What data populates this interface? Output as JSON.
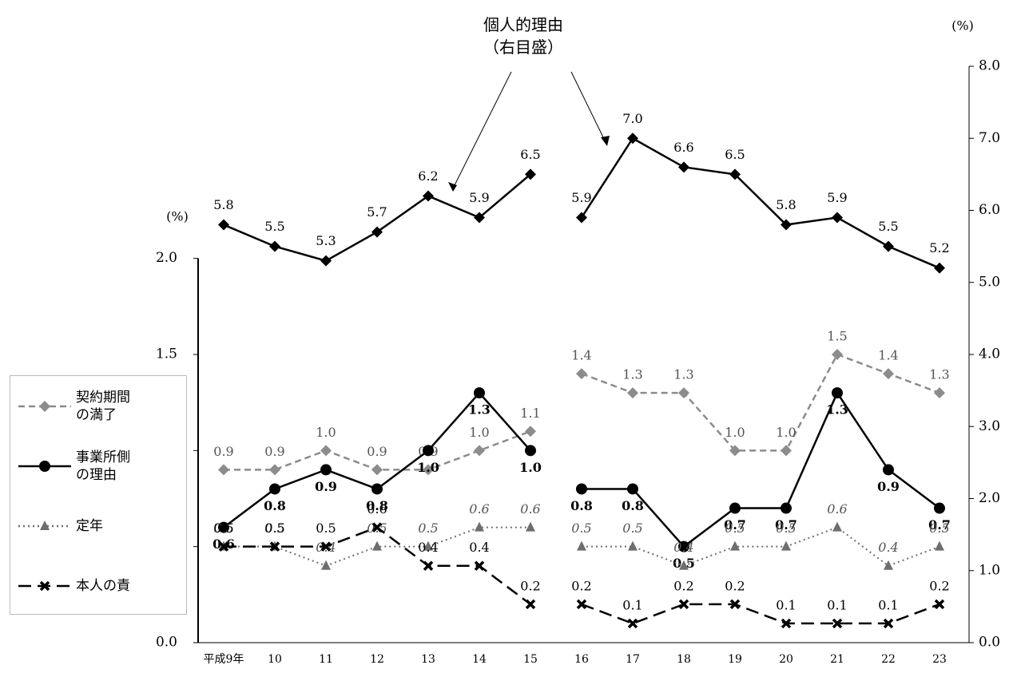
{
  "chart_data": {
    "type": "line",
    "annotation": "個人的理由\n（右目盛）",
    "y_unit": "(%)",
    "y2_unit": "(%)",
    "categories": [
      "平成9年",
      "10",
      "11",
      "12",
      "13",
      "14",
      "15",
      "16",
      "17",
      "18",
      "19",
      "20",
      "21",
      "22",
      "23"
    ],
    "line_break_after": "15",
    "ylim": [
      0,
      3
    ],
    "yticks": [
      {
        "value": 0,
        "label": "0.0"
      },
      {
        "value": 0.5,
        "label": "0.5"
      },
      {
        "value": 1,
        "label": "1.0"
      },
      {
        "value": 1.5,
        "label": "1.5"
      },
      {
        "value": 2,
        "label": "2.0"
      }
    ],
    "y2lim": [
      0,
      8
    ],
    "y2ticks": [
      {
        "value": 0,
        "label": "0.0"
      },
      {
        "value": 1,
        "label": "1.0"
      },
      {
        "value": 2,
        "label": "2.0"
      },
      {
        "value": 3,
        "label": "3.0"
      },
      {
        "value": 4,
        "label": "4.0"
      },
      {
        "value": 5,
        "label": "5.0"
      },
      {
        "value": 6,
        "label": "6.0"
      },
      {
        "value": 7,
        "label": "7.0"
      },
      {
        "value": 8,
        "label": "8.0"
      }
    ],
    "series": [
      {
        "name": "個人的理由",
        "axis": "y2",
        "color": "#000000",
        "marker": "diamond",
        "dash": "solid",
        "label_style": "normal",
        "values": [
          5.8,
          5.5,
          5.3,
          5.7,
          6.2,
          5.9,
          6.5,
          5.9,
          7.0,
          6.6,
          6.5,
          5.8,
          5.9,
          5.5,
          5.2
        ],
        "value_labels": [
          "5.8",
          "5.5",
          "5.3",
          "5.7",
          "6.2",
          "5.9",
          "6.5",
          "5.9",
          "7.0",
          "6.6",
          "6.5",
          "5.8",
          "5.9",
          "5.5",
          "5.2"
        ]
      },
      {
        "name": "契約期間\nの満了",
        "color": "#8c8c8c",
        "marker": "diamond",
        "dash": "dashed",
        "label_style": "normal",
        "values": [
          0.9,
          0.9,
          1.0,
          0.9,
          0.9,
          1.0,
          1.1,
          1.4,
          1.3,
          1.3,
          1.0,
          1.0,
          1.5,
          1.4,
          1.3
        ],
        "value_labels": [
          "0.9",
          "0.9",
          "1.0",
          "0.9",
          "0.9",
          "1.0",
          "1.1",
          "1.4",
          "1.3",
          "1.3",
          "1.0",
          "1.0",
          "1.5",
          "1.4",
          "1.3"
        ]
      },
      {
        "name": "事業所側\nの理由",
        "color": "#000000",
        "marker": "circle",
        "dash": "solid",
        "label_style": "bold",
        "values": [
          0.6,
          0.8,
          0.9,
          0.8,
          1.0,
          1.3,
          1.0,
          0.8,
          0.8,
          0.5,
          0.7,
          0.7,
          1.3,
          0.9,
          0.7
        ],
        "value_labels": [
          "0.6",
          "0.8",
          "0.9",
          "0.8",
          "1.0",
          "1.3",
          "1.0",
          "0.8",
          "0.8",
          "0.5",
          "0.7",
          "0.7",
          "1.3",
          "0.9",
          "0.7"
        ]
      },
      {
        "name": "定年",
        "color": "#6e6e6e",
        "marker": "triangle",
        "dash": "dotted",
        "label_style": "italic",
        "values": [
          0.5,
          0.5,
          0.4,
          0.5,
          0.5,
          0.6,
          0.6,
          0.5,
          0.5,
          0.4,
          0.5,
          0.5,
          0.6,
          0.4,
          0.5
        ],
        "value_labels": [
          "0.5",
          "0.5",
          "0.4",
          "0.5",
          "0.5",
          "0.6",
          "0.6",
          "0.5",
          "0.5",
          "0.4",
          "0.5",
          "0.5",
          "0.6",
          "0.4",
          "0.5"
        ]
      },
      {
        "name": "本人の責",
        "color": "#000000",
        "marker": "x",
        "dash": "long-dashed",
        "label_style": "normal",
        "values": [
          0.5,
          0.5,
          0.5,
          0.6,
          0.4,
          0.4,
          0.2,
          0.2,
          0.1,
          0.2,
          0.2,
          0.1,
          0.1,
          0.1,
          0.2
        ],
        "value_labels": [
          "0.5",
          "0.5",
          "0.5",
          "0.6",
          "0.4",
          "0.4",
          "0.2",
          "0.2",
          "0.1",
          "0.2",
          "0.2",
          "0.1",
          "0.1",
          "0.1",
          "0.2"
        ]
      }
    ]
  }
}
